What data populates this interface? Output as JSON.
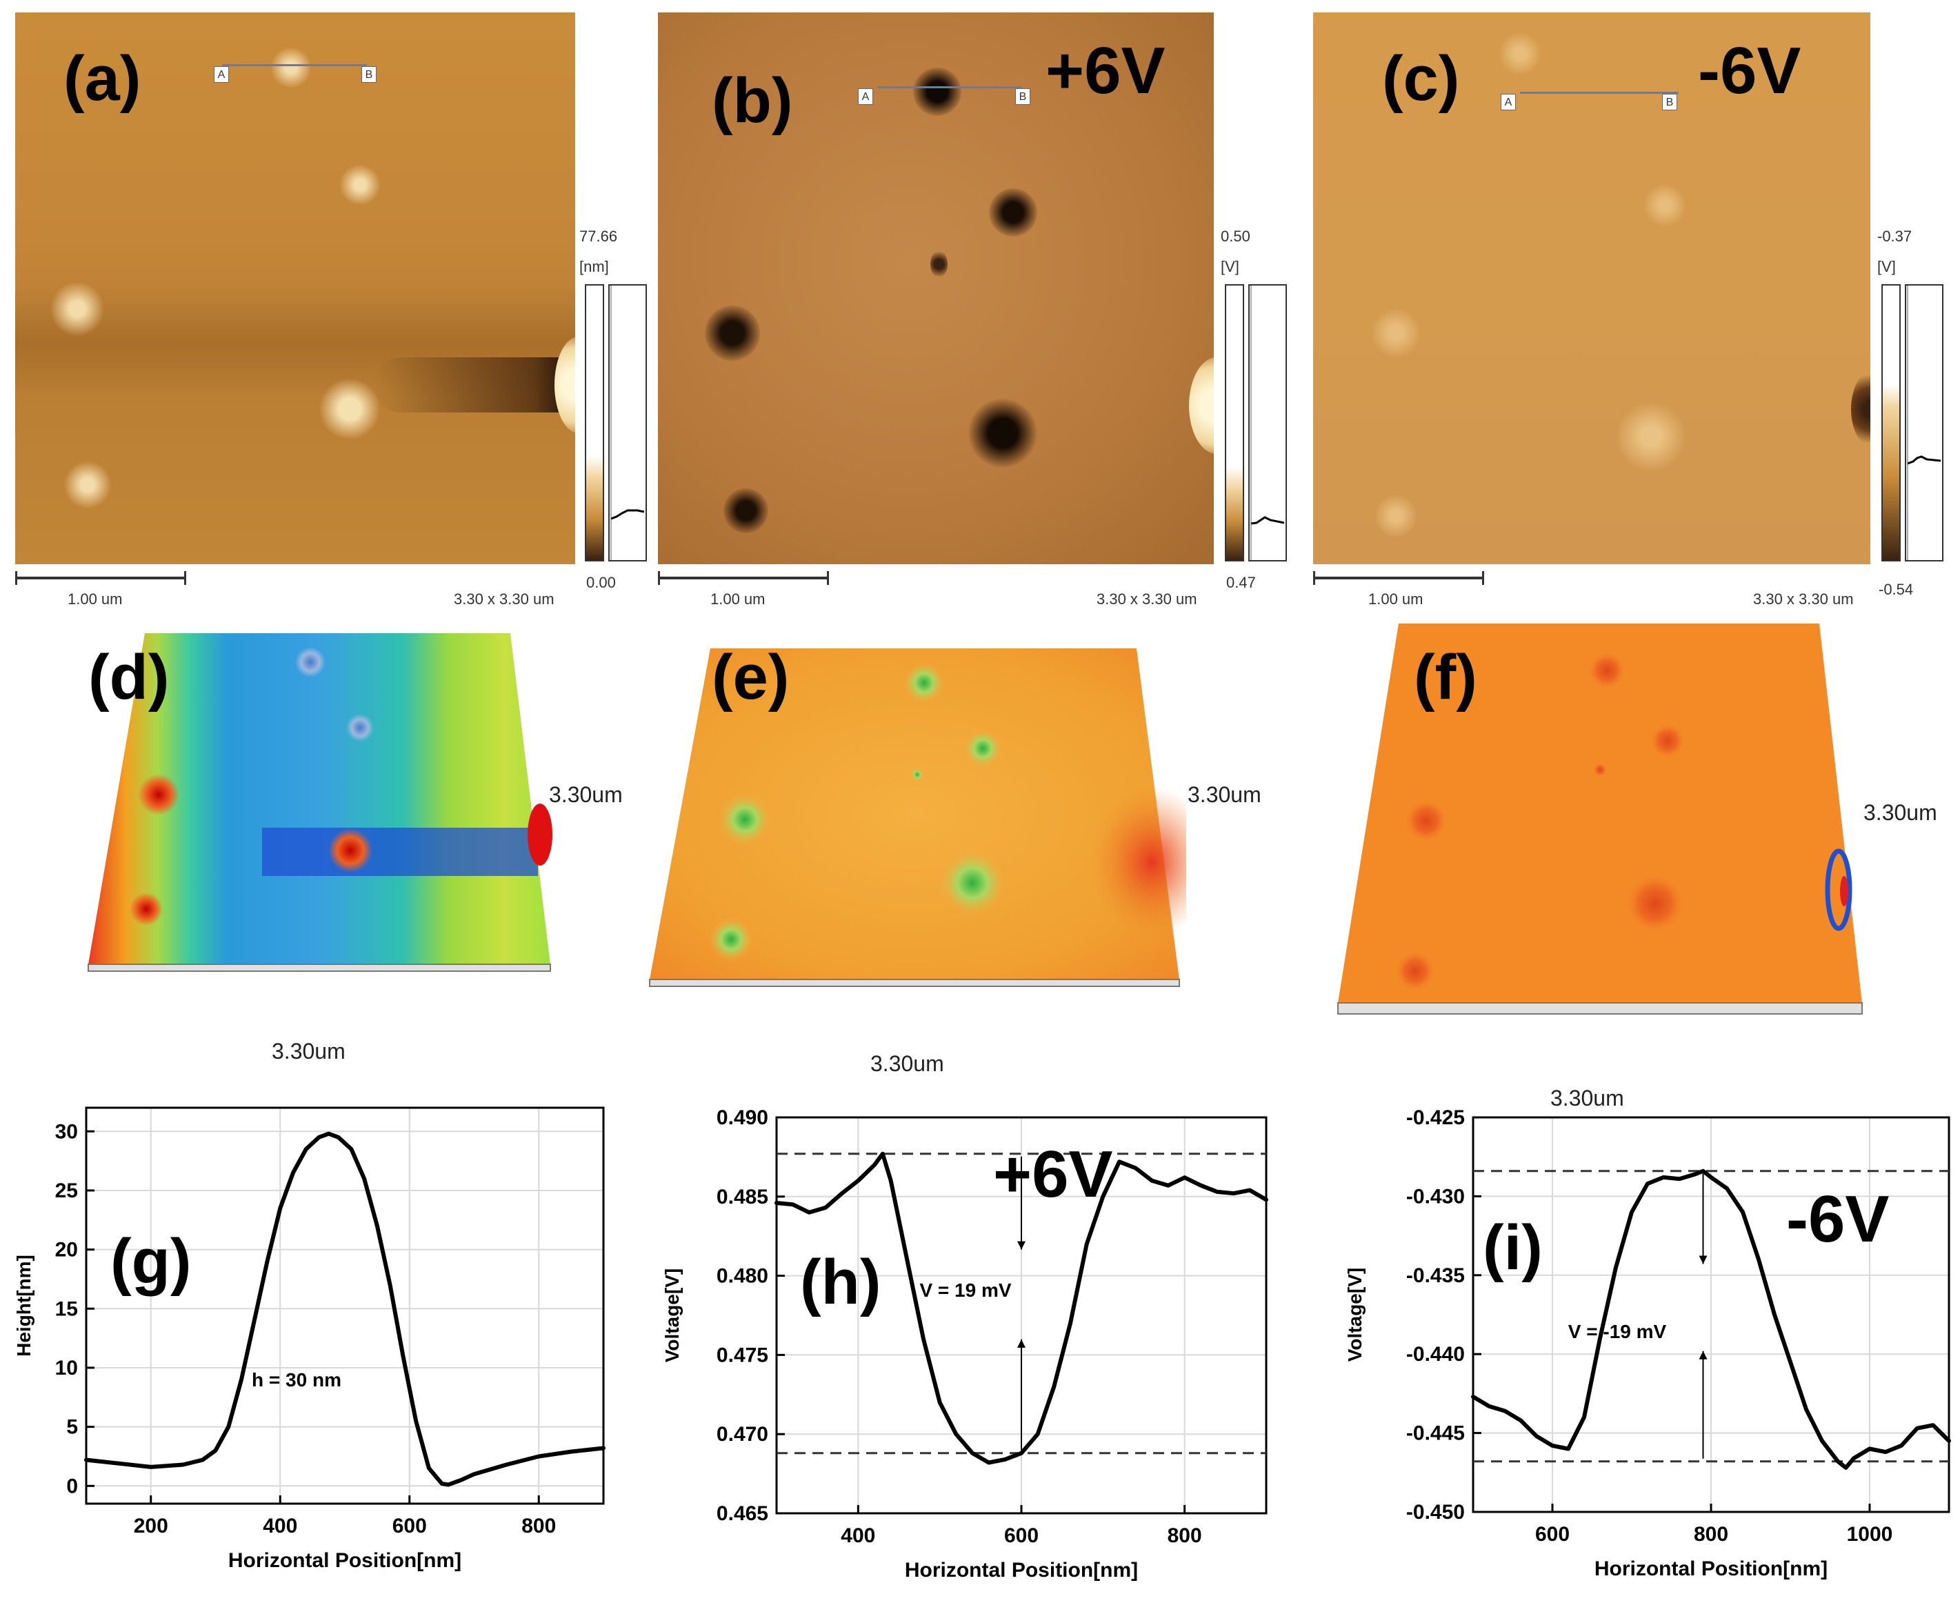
{
  "figure": {
    "panels": {
      "a": {
        "label": "(a)",
        "colorbar_max": "77.66",
        "colorbar_unit": "[nm]",
        "colorbar_min": "0.00",
        "scale_label": "1.00 um",
        "size_label": "3.30 x 3.30 um",
        "marker_a": "A",
        "marker_b": "B"
      },
      "b": {
        "label": "(b)",
        "bias": "+6V",
        "colorbar_max": "0.50",
        "colorbar_unit": "[V]",
        "colorbar_min": "0.47",
        "scale_label": "1.00 um",
        "size_label": "3.30 x 3.30 um",
        "marker_a": "A",
        "marker_b": "B"
      },
      "c": {
        "label": "(c)",
        "bias": "-6V",
        "colorbar_max": "-0.37",
        "colorbar_unit": "[V]",
        "colorbar_min": "-0.54",
        "scale_label": "1.00 um",
        "size_label": "3.30 x 3.30 um",
        "marker_a": "A",
        "marker_b": "B"
      },
      "d": {
        "label": "(d)",
        "dim_right": "3.30um",
        "dim_bottom": "3.30um"
      },
      "e": {
        "label": "(e)",
        "dim_right": "3.30um",
        "dim_bottom": "3.30um"
      },
      "f": {
        "label": "(f)",
        "dim_right": "3.30um",
        "dim_bottom": "3.30um"
      }
    }
  },
  "chart_data": [
    {
      "id": "g",
      "type": "line",
      "label": "(g)",
      "xlabel": "Horizontal Position[nm]",
      "ylabel": "Height[nm]",
      "xlim": [
        100,
        900
      ],
      "ylim": [
        -1.5,
        32
      ],
      "xticks": [
        200,
        400,
        600,
        800
      ],
      "yticks": [
        0,
        5,
        10,
        15,
        20,
        25,
        30
      ],
      "ytick_decimals": 0,
      "annotation": "h = 30 nm",
      "x": [
        100,
        150,
        200,
        250,
        280,
        300,
        320,
        340,
        360,
        380,
        400,
        420,
        440,
        460,
        475,
        490,
        510,
        530,
        550,
        570,
        590,
        610,
        630,
        650,
        660,
        680,
        700,
        750,
        800,
        850,
        900
      ],
      "y": [
        2.2,
        1.9,
        1.6,
        1.8,
        2.2,
        3.0,
        5.0,
        9.0,
        14.0,
        19.0,
        23.5,
        26.5,
        28.5,
        29.5,
        29.8,
        29.5,
        28.5,
        26.0,
        22.0,
        17.0,
        11.0,
        5.5,
        1.5,
        0.2,
        0.1,
        0.5,
        1.0,
        1.8,
        2.5,
        2.9,
        3.2
      ]
    },
    {
      "id": "h",
      "type": "line",
      "label": "(h)",
      "bias": "+6V",
      "xlabel": "Horizontal Position[nm]",
      "ylabel": "Voltage[V]",
      "xlim": [
        300,
        900
      ],
      "ylim": [
        0.465,
        0.49
      ],
      "xticks": [
        400,
        600,
        800
      ],
      "yticks": [
        0.465,
        0.47,
        0.475,
        0.48,
        0.485,
        0.49
      ],
      "ytick_decimals": 3,
      "annotation": "V = 19 mV",
      "ref_lines": [
        0.4877,
        0.4688
      ],
      "x": [
        300,
        320,
        340,
        360,
        380,
        400,
        420,
        430,
        440,
        460,
        480,
        500,
        520,
        540,
        560,
        580,
        600,
        620,
        640,
        660,
        680,
        700,
        720,
        740,
        760,
        780,
        800,
        820,
        840,
        860,
        880,
        900
      ],
      "y": [
        0.4846,
        0.4845,
        0.484,
        0.4843,
        0.4852,
        0.486,
        0.487,
        0.4877,
        0.486,
        0.481,
        0.476,
        0.472,
        0.47,
        0.4688,
        0.4682,
        0.4684,
        0.4688,
        0.47,
        0.473,
        0.477,
        0.482,
        0.485,
        0.4872,
        0.4868,
        0.486,
        0.4857,
        0.4862,
        0.4857,
        0.4853,
        0.4852,
        0.4854,
        0.4848
      ]
    },
    {
      "id": "i",
      "type": "line",
      "label": "(i)",
      "bias": "-6V",
      "xlabel": "Horizontal Position[nm]",
      "ylabel": "Voltage[V]",
      "xlim": [
        500,
        1100
      ],
      "ylim": [
        -0.45,
        -0.425
      ],
      "xticks": [
        600,
        800,
        1000
      ],
      "yticks": [
        -0.45,
        -0.445,
        -0.44,
        -0.435,
        -0.43,
        -0.425
      ],
      "ytick_decimals": 3,
      "annotation": "V = -19 mV",
      "ref_lines": [
        -0.4284,
        -0.4468
      ],
      "x": [
        500,
        520,
        540,
        560,
        580,
        600,
        620,
        640,
        660,
        680,
        700,
        720,
        740,
        760,
        780,
        790,
        800,
        820,
        840,
        860,
        880,
        900,
        920,
        940,
        960,
        970,
        980,
        1000,
        1020,
        1040,
        1060,
        1080,
        1100
      ],
      "y": [
        -0.4427,
        -0.4433,
        -0.4436,
        -0.4442,
        -0.4452,
        -0.4458,
        -0.446,
        -0.444,
        -0.439,
        -0.4345,
        -0.431,
        -0.4292,
        -0.4288,
        -0.4289,
        -0.4286,
        -0.4284,
        -0.4288,
        -0.4295,
        -0.431,
        -0.434,
        -0.4375,
        -0.4405,
        -0.4435,
        -0.4455,
        -0.4468,
        -0.4472,
        -0.4466,
        -0.446,
        -0.4462,
        -0.4458,
        -0.4447,
        -0.4445,
        -0.4455
      ]
    }
  ]
}
